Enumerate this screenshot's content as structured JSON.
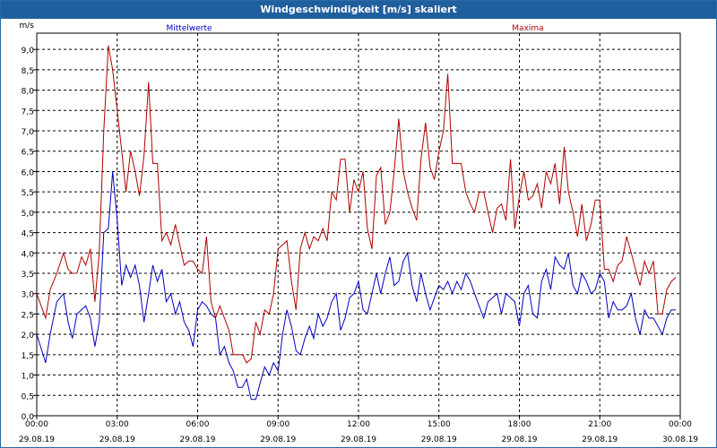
{
  "window": {
    "title": "Windgeschwindigkeit [m/s] skaliert"
  },
  "chart_data": {
    "type": "line",
    "title": "Windgeschwindigkeit [m/s] skaliert",
    "ylabel": "m/s",
    "ylim": [
      0.0,
      9.4
    ],
    "xlim_hours": [
      0,
      24
    ],
    "grid": true,
    "legend_placement": "top",
    "y_ticks": [
      "0,0",
      "0,5",
      "1,0",
      "1,5",
      "2,0",
      "2,5",
      "3,0",
      "3,5",
      "4,0",
      "4,5",
      "5,0",
      "5,5",
      "6,0",
      "6,5",
      "7,0",
      "7,5",
      "8,0",
      "8,5",
      "9,0"
    ],
    "x_ticks": [
      {
        "time": "00:00",
        "date": "29.08.19"
      },
      {
        "time": "03:00",
        "date": "29.08.19"
      },
      {
        "time": "06:00",
        "date": "29.08.19"
      },
      {
        "time": "09:00",
        "date": "29.08.19"
      },
      {
        "time": "12:00",
        "date": "29.08.19"
      },
      {
        "time": "15:00",
        "date": "29.08.19"
      },
      {
        "time": "18:00",
        "date": "29.08.19"
      },
      {
        "time": "21:00",
        "date": "29.08.19"
      },
      {
        "time": "00:00",
        "date": "30.08.19"
      }
    ],
    "series": [
      {
        "name": "Mittelwerte",
        "color": "#0000c0",
        "x_hours": [
          0,
          0.33,
          0.5,
          0.75,
          1,
          1.17,
          1.33,
          1.5,
          1.83,
          2,
          2.17,
          2.33,
          2.5,
          2.67,
          2.83,
          3,
          3.17,
          3.33,
          3.5,
          3.67,
          3.83,
          4,
          4.17,
          4.33,
          4.5,
          4.67,
          4.83,
          5,
          5.17,
          5.33,
          5.5,
          5.67,
          5.83,
          6,
          6.17,
          6.33,
          6.5,
          6.67,
          6.83,
          7,
          7.17,
          7.33,
          7.5,
          7.67,
          7.83,
          8,
          8.17,
          8.33,
          8.5,
          8.67,
          8.83,
          9,
          9.17,
          9.33,
          9.5,
          9.67,
          9.83,
          10,
          10.17,
          10.33,
          10.5,
          10.67,
          10.83,
          11,
          11.17,
          11.33,
          11.5,
          11.67,
          11.83,
          12,
          12.17,
          12.33,
          12.5,
          12.67,
          12.83,
          13,
          13.17,
          13.33,
          13.5,
          13.67,
          13.83,
          14,
          14.17,
          14.33,
          14.5,
          14.67,
          14.83,
          15,
          15.17,
          15.33,
          15.5,
          15.67,
          15.83,
          16,
          16.17,
          16.33,
          16.5,
          16.67,
          16.83,
          17,
          17.17,
          17.33,
          17.5,
          17.67,
          17.83,
          18,
          18.17,
          18.33,
          18.5,
          18.67,
          18.83,
          19,
          19.17,
          19.33,
          19.5,
          19.67,
          19.83,
          20,
          20.17,
          20.33,
          20.5,
          20.67,
          20.83,
          21,
          21.17,
          21.33,
          21.5,
          21.67,
          21.83,
          22,
          22.17,
          22.33,
          22.5,
          22.67,
          22.83,
          23,
          23.17,
          23.33,
          23.5,
          23.67,
          23.83
        ],
        "values": [
          2.0,
          1.3,
          2.0,
          2.8,
          3.0,
          2.3,
          1.9,
          2.5,
          2.7,
          2.4,
          1.7,
          2.3,
          4.5,
          4.6,
          6.0,
          4.8,
          3.2,
          3.7,
          3.4,
          3.7,
          3.2,
          2.3,
          3.0,
          3.7,
          3.3,
          3.6,
          2.8,
          3.0,
          2.5,
          2.8,
          2.3,
          2.1,
          1.7,
          2.6,
          2.8,
          2.7,
          2.5,
          2.4,
          1.5,
          1.7,
          1.3,
          1.1,
          0.7,
          0.7,
          0.9,
          0.4,
          0.4,
          0.8,
          1.2,
          1.0,
          1.3,
          1.1,
          2.0,
          2.6,
          2.2,
          1.6,
          1.5,
          1.9,
          2.2,
          1.9,
          2.5,
          2.2,
          2.4,
          2.8,
          3.0,
          2.1,
          2.4,
          2.9,
          3.0,
          3.3,
          2.6,
          2.5,
          3.0,
          3.5,
          3.0,
          3.5,
          3.9,
          3.2,
          3.3,
          3.8,
          4.0,
          3.2,
          2.8,
          3.5,
          3.0,
          2.6,
          2.9,
          3.2,
          3.1,
          3.3,
          3.0,
          3.3,
          3.1,
          3.5,
          3.3,
          3.0,
          2.7,
          2.4,
          2.8,
          2.9,
          3.0,
          2.5,
          3.0,
          2.9,
          2.8,
          2.2,
          3.0,
          3.2,
          2.5,
          2.4,
          3.3,
          3.6,
          3.1,
          3.9,
          3.7,
          3.6,
          4.0,
          3.2,
          3.0,
          3.5,
          3.3,
          3.0,
          3.1,
          3.5,
          3.3,
          2.4,
          2.8,
          2.6,
          2.6,
          2.7,
          3.0,
          2.4,
          2.0,
          2.6,
          2.4,
          2.4,
          2.2,
          2.0,
          2.4,
          2.6,
          2.6
        ]
      },
      {
        "name": "Maxima",
        "color": "#b00000",
        "x_hours": [
          0,
          0.33,
          0.5,
          0.75,
          1,
          1.17,
          1.33,
          1.5,
          1.67,
          1.83,
          2,
          2.17,
          2.33,
          2.5,
          2.67,
          2.83,
          3,
          3.17,
          3.33,
          3.5,
          3.67,
          3.83,
          4,
          4.17,
          4.33,
          4.5,
          4.67,
          4.83,
          5,
          5.17,
          5.33,
          5.5,
          5.67,
          5.83,
          6,
          6.17,
          6.33,
          6.5,
          6.67,
          6.83,
          7,
          7.17,
          7.33,
          7.5,
          7.67,
          7.83,
          8,
          8.17,
          8.33,
          8.5,
          8.67,
          8.83,
          9,
          9.17,
          9.33,
          9.5,
          9.67,
          9.83,
          10,
          10.17,
          10.33,
          10.5,
          10.67,
          10.83,
          11,
          11.17,
          11.33,
          11.5,
          11.67,
          11.83,
          12,
          12.17,
          12.33,
          12.5,
          12.67,
          12.83,
          13,
          13.17,
          13.33,
          13.5,
          13.67,
          13.83,
          14,
          14.17,
          14.33,
          14.5,
          14.67,
          14.83,
          15,
          15.17,
          15.33,
          15.5,
          15.67,
          15.83,
          16,
          16.17,
          16.33,
          16.5,
          16.67,
          16.83,
          17,
          17.17,
          17.33,
          17.5,
          17.67,
          17.83,
          18,
          18.17,
          18.33,
          18.5,
          18.67,
          18.83,
          19,
          19.17,
          19.33,
          19.5,
          19.67,
          19.83,
          20,
          20.17,
          20.33,
          20.5,
          20.67,
          20.83,
          21,
          21.17,
          21.33,
          21.5,
          21.67,
          21.83,
          22,
          22.17,
          22.33,
          22.5,
          22.67,
          22.83,
          23,
          23.17,
          23.33,
          23.5,
          23.67,
          23.83
        ],
        "values": [
          3.0,
          2.4,
          3.1,
          3.5,
          4.0,
          3.6,
          3.5,
          3.5,
          3.9,
          3.7,
          4.1,
          2.8,
          4.0,
          7.0,
          9.1,
          8.5,
          7.5,
          6.5,
          5.5,
          6.5,
          6.0,
          5.4,
          6.4,
          8.2,
          6.2,
          6.2,
          4.3,
          4.5,
          4.2,
          4.7,
          4.2,
          3.7,
          3.8,
          3.8,
          3.6,
          3.5,
          4.4,
          2.8,
          2.4,
          2.7,
          2.4,
          2.1,
          1.5,
          1.5,
          1.5,
          1.3,
          1.4,
          2.3,
          2.0,
          2.6,
          2.5,
          3.0,
          4.1,
          4.2,
          4.3,
          3.3,
          2.6,
          4.1,
          4.5,
          4.1,
          4.4,
          4.3,
          4.6,
          4.3,
          5.5,
          5.3,
          6.3,
          6.3,
          5.0,
          5.8,
          5.5,
          6.0,
          4.6,
          4.1,
          5.9,
          6.1,
          4.7,
          5.0,
          6.0,
          7.3,
          6.0,
          5.5,
          5.1,
          4.8,
          6.3,
          7.2,
          6.1,
          5.8,
          6.5,
          7.0,
          8.4,
          6.2,
          6.2,
          6.2,
          5.5,
          5.2,
          5.0,
          5.5,
          5.5,
          5.0,
          4.5,
          5.1,
          5.2,
          4.8,
          6.3,
          4.6,
          5.4,
          6.0,
          5.3,
          5.4,
          5.7,
          5.1,
          6.0,
          5.7,
          6.2,
          5.2,
          6.6,
          5.5,
          5.0,
          4.4,
          5.2,
          4.3,
          4.7,
          5.3,
          5.3,
          3.6,
          3.6,
          3.3,
          3.7,
          3.8,
          4.4,
          4.0,
          3.6,
          3.2,
          3.8,
          3.5,
          3.8,
          2.5,
          2.5,
          3.1,
          3.3,
          3.4
        ]
      }
    ]
  }
}
